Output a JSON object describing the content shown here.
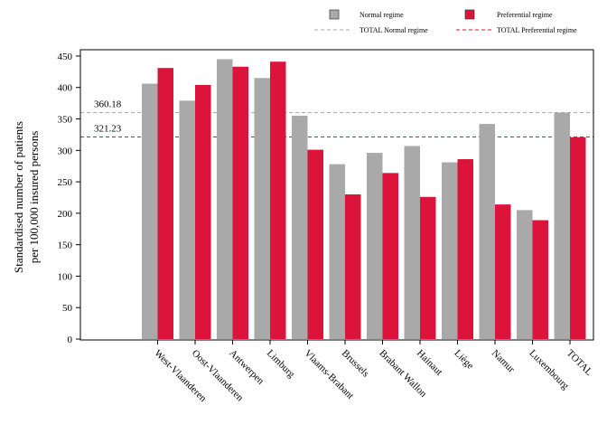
{
  "chart_data": {
    "type": "bar",
    "ylabel": [
      "Standardised number of patients",
      "per 100,000 insured persons"
    ],
    "xlabel": "",
    "ylim": [
      0,
      460
    ],
    "yticks": [
      0,
      50,
      100,
      150,
      200,
      250,
      300,
      350,
      400,
      450
    ],
    "grid": false,
    "legend_position": "top-right",
    "categories": [
      "West-Vlaanderen",
      "Oost-Vlaanderen",
      "Antwerpen",
      "Limburg",
      "Vlaams-Brabant",
      "Brussels",
      "Brabant Wallon",
      "Hainaut",
      "Liège",
      "Namur",
      "Luxembourg",
      "TOTAL"
    ],
    "series": [
      {
        "name": "Normal regime",
        "color": "#a9a9a9",
        "values": [
          406,
          379,
          445,
          415,
          355,
          278,
          296,
          307,
          281,
          342,
          205,
          360
        ]
      },
      {
        "name": "Preferential regime",
        "color": "#dc143c",
        "values": [
          431,
          404,
          433,
          441,
          301,
          230,
          264,
          226,
          286,
          214,
          189,
          321
        ]
      }
    ],
    "reference_lines": [
      {
        "name": "TOTAL Normal regime",
        "value": 360.18,
        "label": "360.18",
        "color": "#a9a9a9",
        "dash": "dashed"
      },
      {
        "name": "TOTAL Preferential regime",
        "value": 321.23,
        "label": "321.23",
        "color": "#dc143c",
        "dash": "dashed"
      }
    ]
  }
}
